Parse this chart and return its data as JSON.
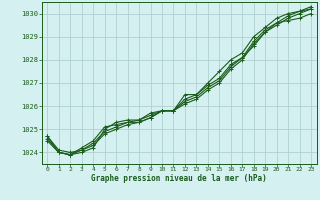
{
  "xlabel": "Graphe pression niveau de la mer (hPa)",
  "bg_color": "#d4f0f0",
  "plot_bg_color": "#d4f0f0",
  "grid_color": "#aacccc",
  "line_color": "#1a5c1a",
  "text_color": "#1a5c1a",
  "ylim": [
    1023.5,
    1030.5
  ],
  "xlim": [
    -0.5,
    23.5
  ],
  "yticks": [
    1024,
    1025,
    1026,
    1027,
    1028,
    1029,
    1030
  ],
  "xticks": [
    0,
    1,
    2,
    3,
    4,
    5,
    6,
    7,
    8,
    9,
    10,
    11,
    12,
    13,
    14,
    15,
    16,
    17,
    18,
    19,
    20,
    21,
    22,
    23
  ],
  "series": [
    [
      1024.7,
      1024.0,
      1023.9,
      1024.0,
      1024.2,
      1025.0,
      1025.3,
      1025.4,
      1025.4,
      1025.7,
      1025.8,
      1025.8,
      1026.5,
      1026.5,
      1027.0,
      1027.5,
      1028.0,
      1028.3,
      1029.0,
      1029.4,
      1029.8,
      1030.0,
      1030.1,
      1030.2
    ],
    [
      1024.7,
      1024.1,
      1024.0,
      1024.1,
      1024.3,
      1024.8,
      1025.0,
      1025.2,
      1025.3,
      1025.5,
      1025.8,
      1025.8,
      1026.3,
      1026.5,
      1026.9,
      1027.2,
      1027.8,
      1028.1,
      1028.6,
      1029.2,
      1029.6,
      1029.7,
      1029.8,
      1030.0
    ],
    [
      1024.5,
      1024.0,
      1023.9,
      1024.2,
      1024.5,
      1025.1,
      1025.2,
      1025.3,
      1025.4,
      1025.6,
      1025.8,
      1025.8,
      1026.1,
      1026.3,
      1026.7,
      1027.0,
      1027.6,
      1028.0,
      1028.7,
      1029.2,
      1029.5,
      1029.8,
      1030.0,
      1030.2
    ],
    [
      1024.6,
      1024.0,
      1023.9,
      1024.1,
      1024.4,
      1024.9,
      1025.1,
      1025.3,
      1025.3,
      1025.5,
      1025.8,
      1025.8,
      1026.2,
      1026.4,
      1026.8,
      1027.1,
      1027.7,
      1028.1,
      1028.8,
      1029.3,
      1029.6,
      1029.9,
      1030.1,
      1030.3
    ]
  ]
}
